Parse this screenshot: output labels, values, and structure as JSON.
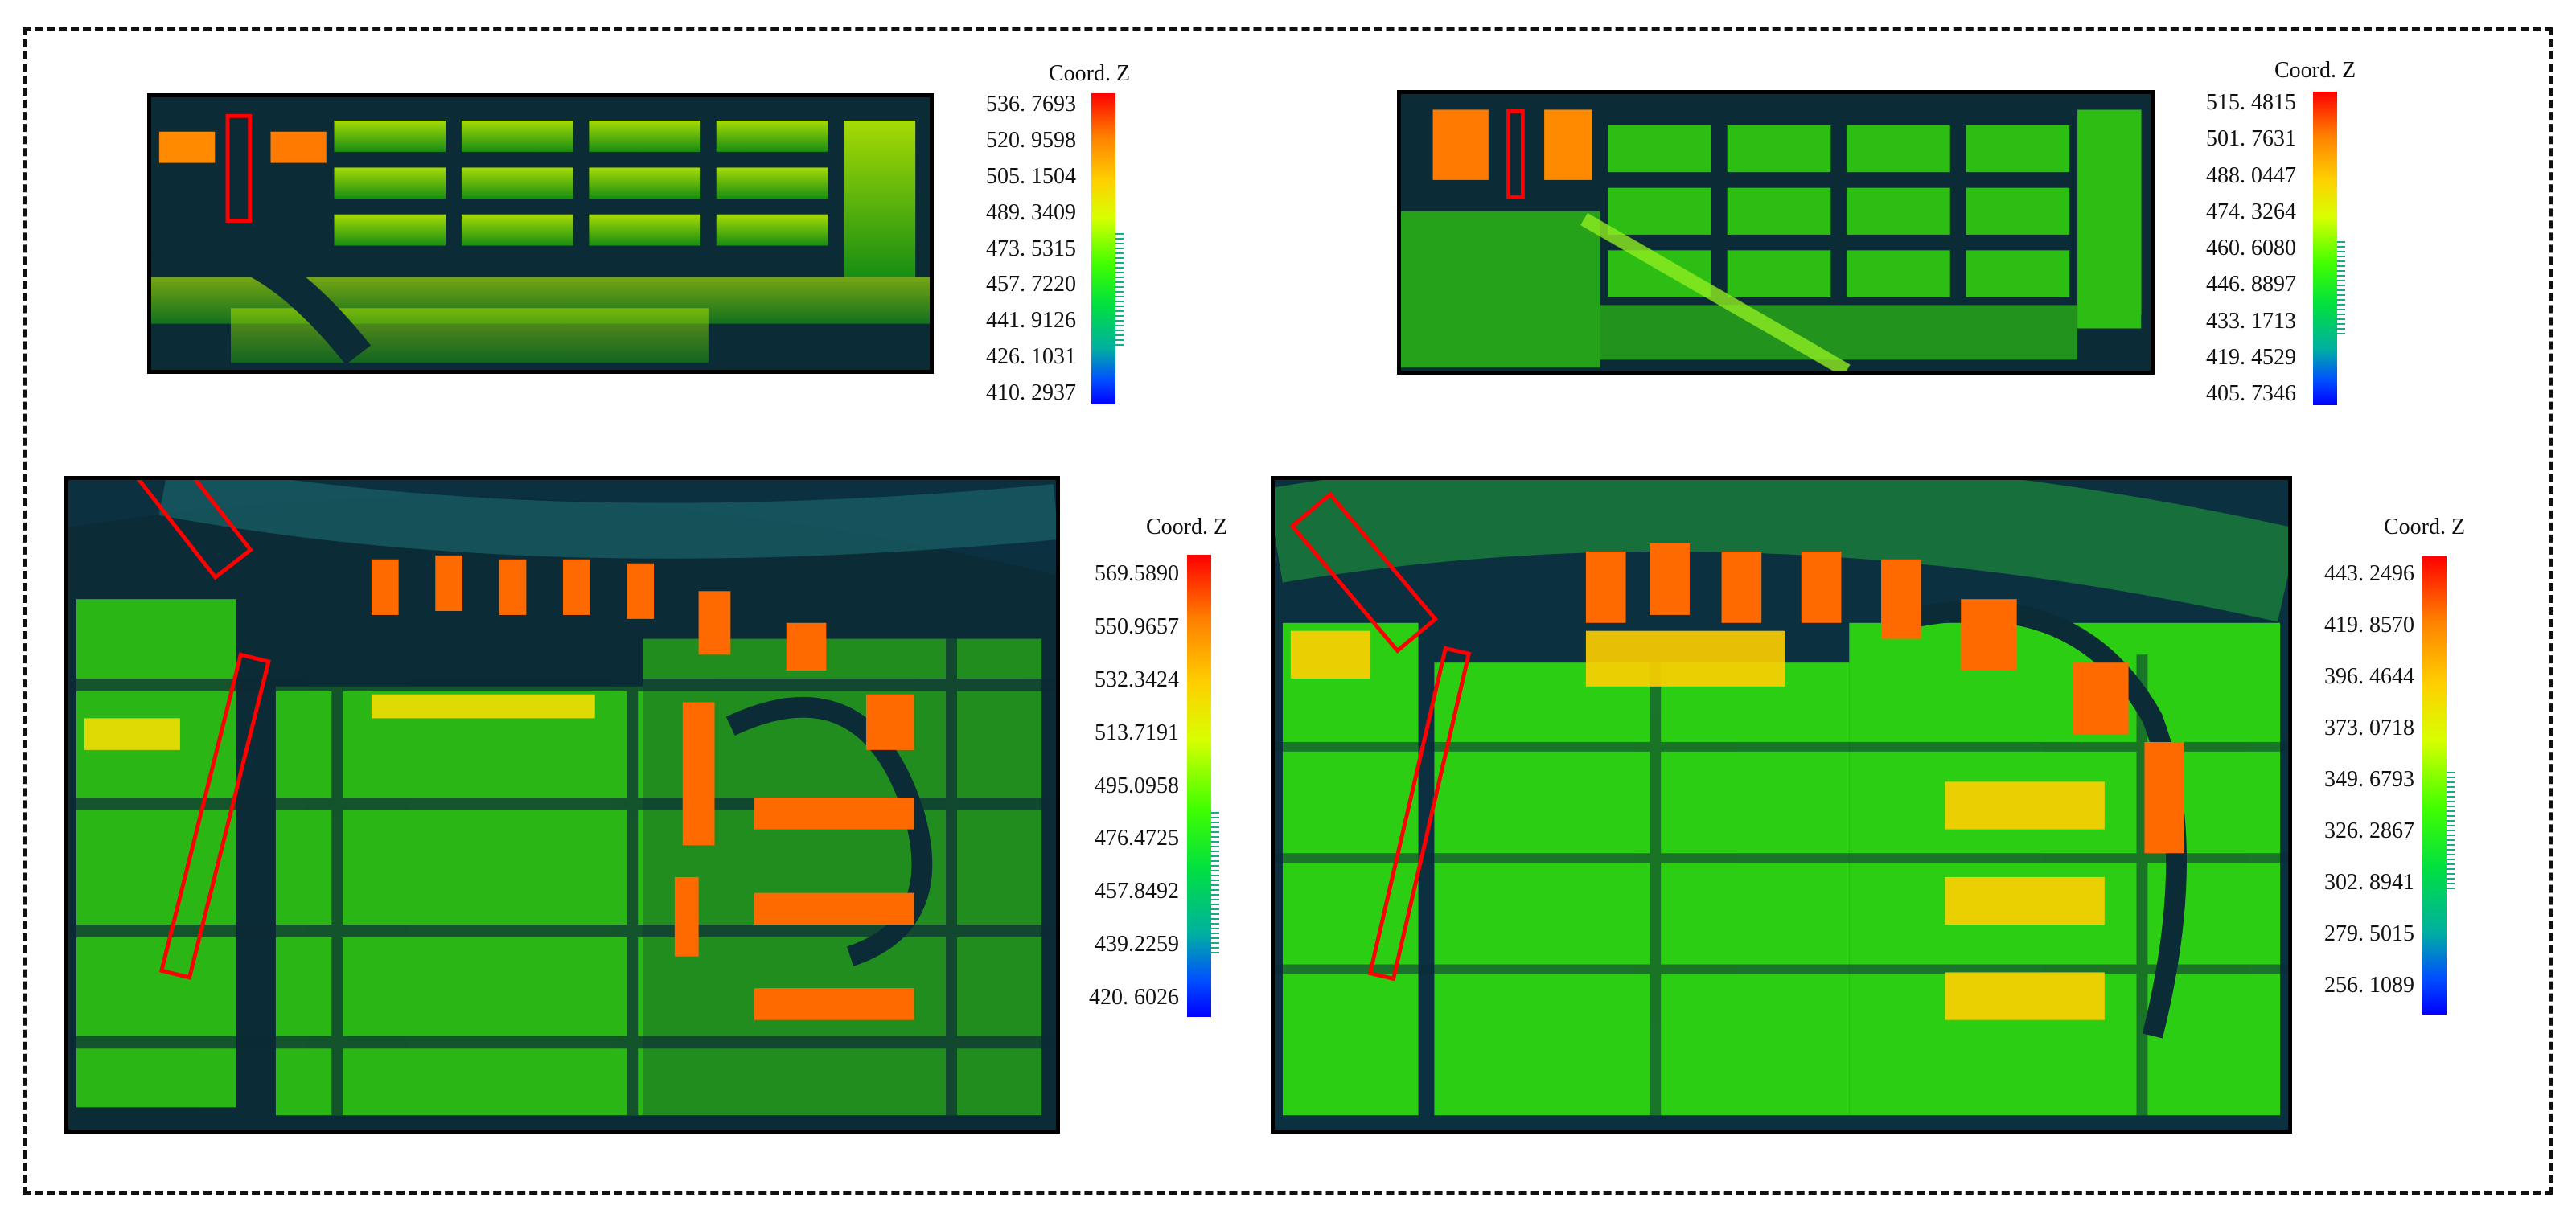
{
  "panels": [
    {
      "id": "top-left",
      "colorbar": {
        "title": "Coord. Z",
        "ticks": [
          "536. 7693",
          "520. 9598",
          "505. 1504",
          "489. 3409",
          "473. 5315",
          "457. 7220",
          "441. 9126",
          "426. 1031",
          "410. 2937"
        ]
      }
    },
    {
      "id": "top-right",
      "colorbar": {
        "title": "Coord. Z",
        "ticks": [
          "515. 4815",
          "501. 7631",
          "488. 0447",
          "474. 3264",
          "460. 6080",
          "446. 8897",
          "433. 1713",
          "419. 4529",
          "405. 7346"
        ]
      }
    },
    {
      "id": "bottom-left",
      "colorbar": {
        "title": "Coord. Z",
        "ticks": [
          "569.5890",
          "550.9657",
          "532.3424",
          "513.7191",
          "495.0958",
          "476.4725",
          "457.8492",
          "439.2259",
          "420. 6026"
        ]
      }
    },
    {
      "id": "bottom-right",
      "colorbar": {
        "title": "Coord. Z",
        "ticks": [
          "443. 2496",
          "419. 8570",
          "396. 4644",
          "373. 0718",
          "349. 6793",
          "326. 2867",
          "302. 8941",
          "279. 5015",
          "256. 1089"
        ]
      }
    }
  ],
  "colors": {
    "background_dark": "#0c2a35",
    "point_low": "#00c000",
    "point_mid": "#d8f000",
    "point_high": "#ff5a00",
    "highlight_box": "#ff0000"
  }
}
